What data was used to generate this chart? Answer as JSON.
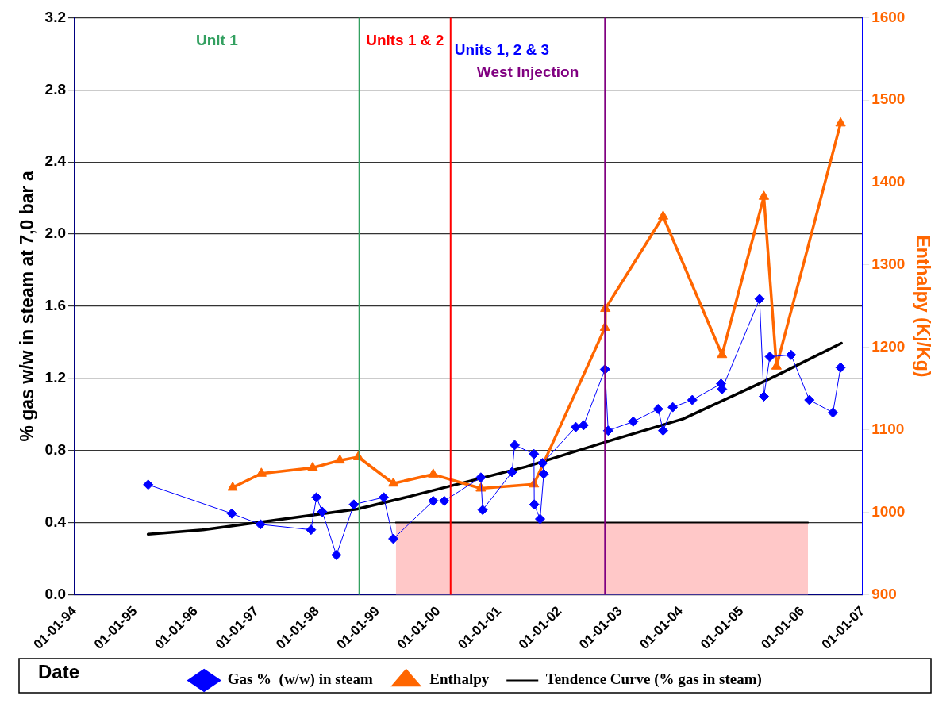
{
  "chart_data": {
    "type": "line",
    "xlabel": "Date",
    "ylabel": "% gas w/w in steam at 7,0 bar a",
    "y2label": "Enthalpy (Kj/Kg)",
    "xlim": [
      "1994-01-01",
      "2007-01-01"
    ],
    "xticks": [
      {
        "value": "1994-01-01",
        "label": "01-01-94"
      },
      {
        "value": "1995-01-01",
        "label": "01-01-95"
      },
      {
        "value": "1996-01-01",
        "label": "01-01-96"
      },
      {
        "value": "1997-01-01",
        "label": "01-01-97"
      },
      {
        "value": "1998-01-01",
        "label": "01-01-98"
      },
      {
        "value": "1999-01-01",
        "label": "01-01-99"
      },
      {
        "value": "2000-01-01",
        "label": "01-01-00"
      },
      {
        "value": "2001-01-01",
        "label": "01-01-01"
      },
      {
        "value": "2002-01-01",
        "label": "01-01-02"
      },
      {
        "value": "2003-01-01",
        "label": "01-01-03"
      },
      {
        "value": "2004-01-01",
        "label": "01-01-04"
      },
      {
        "value": "2005-01-01",
        "label": "01-01-05"
      },
      {
        "value": "2006-01-01",
        "label": "01-01-06"
      },
      {
        "value": "2007-01-01",
        "label": "01-01-07"
      }
    ],
    "ylim": [
      0,
      3.2
    ],
    "yticks": [
      {
        "value": 0,
        "label": "0.0"
      },
      {
        "value": 0.4,
        "label": "0.4"
      },
      {
        "value": 0.8,
        "label": "0.8"
      },
      {
        "value": 1.2,
        "label": "1.2"
      },
      {
        "value": 1.6,
        "label": "1.6"
      },
      {
        "value": 2.0,
        "label": "2.0"
      },
      {
        "value": 2.4,
        "label": "2.4"
      },
      {
        "value": 2.8,
        "label": "2.8"
      },
      {
        "value": 3.2,
        "label": "3.2"
      }
    ],
    "y2lim": [
      900,
      1600
    ],
    "y2ticks": [
      900,
      1000,
      1100,
      1200,
      1300,
      1400,
      1500,
      1600
    ],
    "grid": "y",
    "legend": "bottom",
    "series": [
      {
        "type": "area",
        "color": "#ffc8c8",
        "x": [
          "1999-04-20",
          "2006-02-05"
        ],
        "values": [
          0.4,
          0.4
        ]
      },
      {
        "name": "Gas %  (w/w) in steam",
        "color": "#0000ff",
        "marker": "diamond",
        "x": [
          "1995-03-20",
          "1996-08-05",
          "1997-01-25",
          "1997-11-25",
          "1997-12-28",
          "1998-02-01",
          "1998-04-27",
          "1998-08-10",
          "1999-02-06",
          "1999-04-05",
          "1999-12-01",
          "2000-02-06",
          "2000-09-13",
          "2000-09-24",
          "2001-03-20",
          "2001-04-05",
          "2001-07-30",
          "2001-08-01",
          "2001-09-05",
          "2001-09-27",
          "2001-09-20",
          "2002-04-08",
          "2002-05-25",
          "2002-10-01",
          "2002-10-20",
          "2003-03-20",
          "2003-08-17",
          "2003-09-16",
          "2003-11-13",
          "2004-03-10",
          "2004-08-30",
          "2004-09-05",
          "2005-04-19",
          "2005-05-15",
          "2005-06-20",
          "2005-10-26",
          "2006-02-13",
          "2006-07-05",
          "2006-08-20"
        ],
        "values": [
          0.61,
          0.45,
          0.39,
          0.36,
          0.54,
          0.46,
          0.22,
          0.5,
          0.54,
          0.31,
          0.52,
          0.52,
          0.65,
          0.47,
          0.68,
          0.83,
          0.78,
          0.5,
          0.42,
          0.67,
          0.73,
          0.93,
          0.94,
          1.25,
          0.91,
          0.96,
          1.03,
          0.91,
          1.04,
          1.08,
          1.17,
          1.14,
          1.64,
          1.1,
          1.32,
          1.33,
          1.08,
          1.01,
          1.26
        ]
      },
      {
        "name": "Enthalpy",
        "color": "#ff6600",
        "marker": "triangle",
        "axis": "y2",
        "x": [
          "1996-08-10",
          "1997-01-30",
          "1997-12-05",
          "1998-05-18",
          "1998-09-06",
          "1999-04-05",
          "1999-12-01",
          "2000-09-13",
          "2001-07-30",
          "2002-10-01",
          "2002-10-03",
          "2003-09-16",
          "2004-09-05",
          "2005-05-15",
          "2005-07-30",
          "2006-08-20"
        ],
        "values": [
          1030,
          1047,
          1054,
          1063,
          1067,
          1035,
          1046,
          1029,
          1034,
          1224,
          1247,
          1359,
          1191,
          1383,
          1177,
          1472
        ]
      },
      {
        "name": "Tendence Curve (% gas in steam)",
        "color": "#000000",
        "marker": "none",
        "x": [
          "1995-03-20",
          "1996-02-13",
          "1998-09-01",
          "1999-07-12",
          "2001-06-13",
          "2002-11-20",
          "2004-01-15",
          "2005-06-25",
          "2006-08-25"
        ],
        "values": [
          0.335,
          0.36,
          0.475,
          0.545,
          0.71,
          0.86,
          0.975,
          1.2,
          1.395
        ]
      }
    ],
    "ref_lines": [
      {
        "axis": "x",
        "value": "1998-09-12",
        "label": "Unit 1",
        "color": "#33a060"
      },
      {
        "axis": "x",
        "value": "2000-03-15",
        "label": "Units 1 & 2",
        "color": "#ff0000"
      },
      {
        "axis": "x",
        "value": "2002-10-01",
        "label": "West Injection",
        "color": "#800080"
      }
    ],
    "annotations": [
      {
        "text": "Units 1, 2 & 3",
        "x": "2000-03-20",
        "y": 3.06
      }
    ]
  }
}
